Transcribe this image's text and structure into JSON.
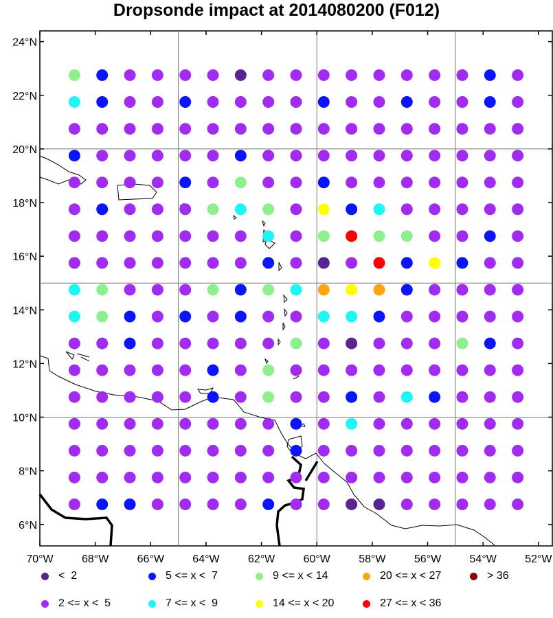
{
  "title": "Dropsonde impact at 2014080200 (F012)",
  "axes": {
    "lon_ticks": [
      "70°W",
      "68°W",
      "66°W",
      "64°W",
      "62°W",
      "60°W",
      "58°W",
      "56°W",
      "54°W",
      "52°W"
    ],
    "lat_ticks": [
      "6°N",
      "8°N",
      "10°N",
      "12°N",
      "14°N",
      "16°N",
      "18°N",
      "20°N",
      "22°N",
      "24°N"
    ],
    "lon_range": [
      -70,
      -51.5
    ],
    "lat_range": [
      5.2,
      24.4
    ]
  },
  "legend": [
    {
      "label": "<  2",
      "color": "#5a2393"
    },
    {
      "label": "2 <= x <  5",
      "color": "#a12bf0"
    },
    {
      "label": "5 <= x <  7",
      "color": "#0a14ff"
    },
    {
      "label": "7 <= x <  9",
      "color": "#1ef5f5"
    },
    {
      "label": "9 <= x < 14",
      "color": "#8ef08c"
    },
    {
      "label": "14 <= x < 20",
      "color": "#ffff00"
    },
    {
      "label": "20 <= x < 27",
      "color": "#ffa514"
    },
    {
      "label": "27 <= x < 36",
      "color": "#ff0000"
    },
    {
      "label": "> 36",
      "color": "#8b0000"
    }
  ],
  "chart_data": {
    "type": "scatter",
    "lons": [
      -68.75,
      -67.75,
      -66.75,
      -65.75,
      -64.75,
      -63.75,
      -62.75,
      -61.75,
      -60.75,
      -59.75,
      -58.75,
      -57.75,
      -56.75,
      -55.75,
      -54.75,
      -53.75,
      -52.75
    ],
    "lats": [
      22.75,
      21.75,
      20.75,
      19.75,
      18.75,
      17.75,
      16.75,
      15.75,
      14.75,
      13.75,
      12.75,
      11.75,
      10.75,
      9.75,
      8.75,
      7.75,
      6.75
    ],
    "category_grid": [
      "42111101111111121",
      "32112111121121121",
      "11111111111111111",
      "21111121111111111",
      "11112141121111111",
      "12111434152311111",
      "11111113147441121",
      "11111112101725211",
      "34111424365621111",
      "34212121133211111",
      "11211111410111421",
      "11111214111111111",
      "11111214112132111",
      "11111111213111111",
      "11111111211111111",
      "11111111111111111",
      "12211112110011111"
    ]
  }
}
